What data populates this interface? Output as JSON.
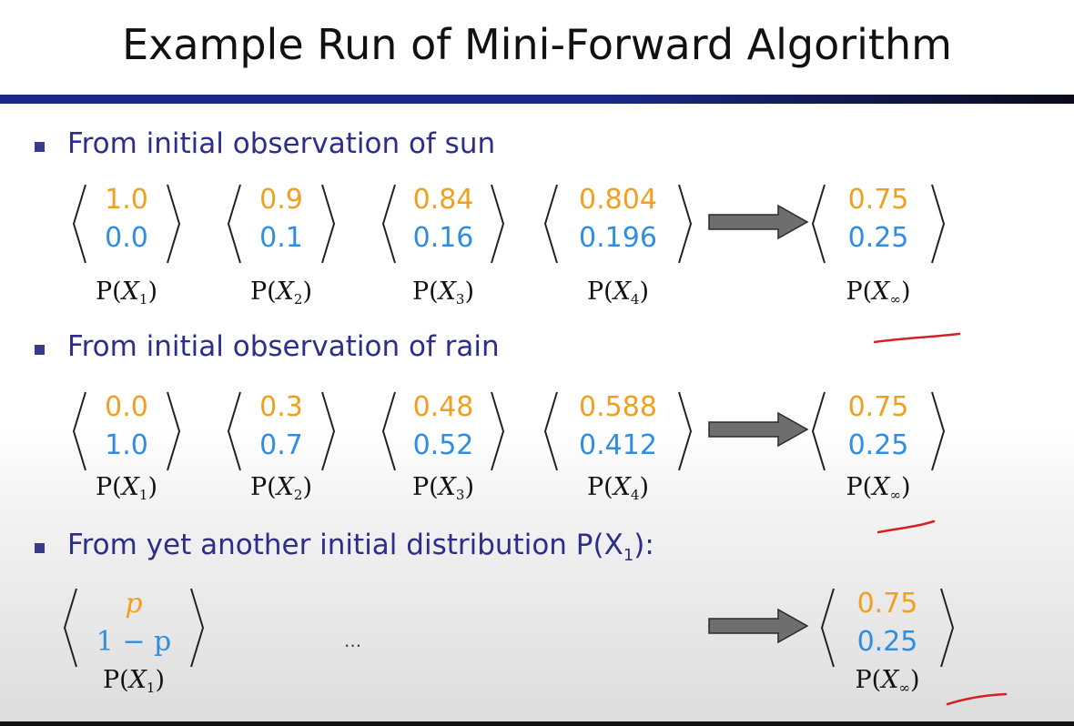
{
  "title": "Example Run of Mini-Forward Algorithm",
  "sections": [
    {
      "bullet": "From initial observation of sun",
      "vectors": [
        {
          "top": "1.0",
          "bottom": "0.0",
          "label_sub": "1"
        },
        {
          "top": "0.9",
          "bottom": "0.1",
          "label_sub": "2"
        },
        {
          "top": "0.84",
          "bottom": "0.16",
          "label_sub": "3"
        },
        {
          "top": "0.804",
          "bottom": "0.196",
          "label_sub": "4"
        }
      ],
      "limit": {
        "top": "0.75",
        "bottom": "0.25",
        "label_sub": "∞"
      }
    },
    {
      "bullet": "From initial observation of rain",
      "vectors": [
        {
          "top": "0.0",
          "bottom": "1.0",
          "label_sub": "1"
        },
        {
          "top": "0.3",
          "bottom": "0.7",
          "label_sub": "2"
        },
        {
          "top": "0.48",
          "bottom": "0.52",
          "label_sub": "3"
        },
        {
          "top": "0.588",
          "bottom": "0.412",
          "label_sub": "4"
        }
      ],
      "limit": {
        "top": "0.75",
        "bottom": "0.25",
        "label_sub": "∞"
      }
    },
    {
      "bullet_prefix": "From yet another initial distribution P(X",
      "bullet_sub": "1",
      "bullet_suffix": "):",
      "vectors": [
        {
          "top": "p",
          "bottom": "1 − p",
          "label_sub": "1"
        }
      ],
      "ellipsis": "...",
      "limit": {
        "top": "0.75",
        "bottom": "0.25",
        "label_sub": "∞"
      }
    }
  ],
  "label_prefix": "P(",
  "label_var": "X",
  "label_suffix": ")",
  "colors": {
    "top_value": "#f0a020",
    "bottom_value": "#2f8ee0",
    "bullet_text": "#2d2d8a",
    "title_rule": "#1a2a8c",
    "annotation": "#d42020"
  }
}
